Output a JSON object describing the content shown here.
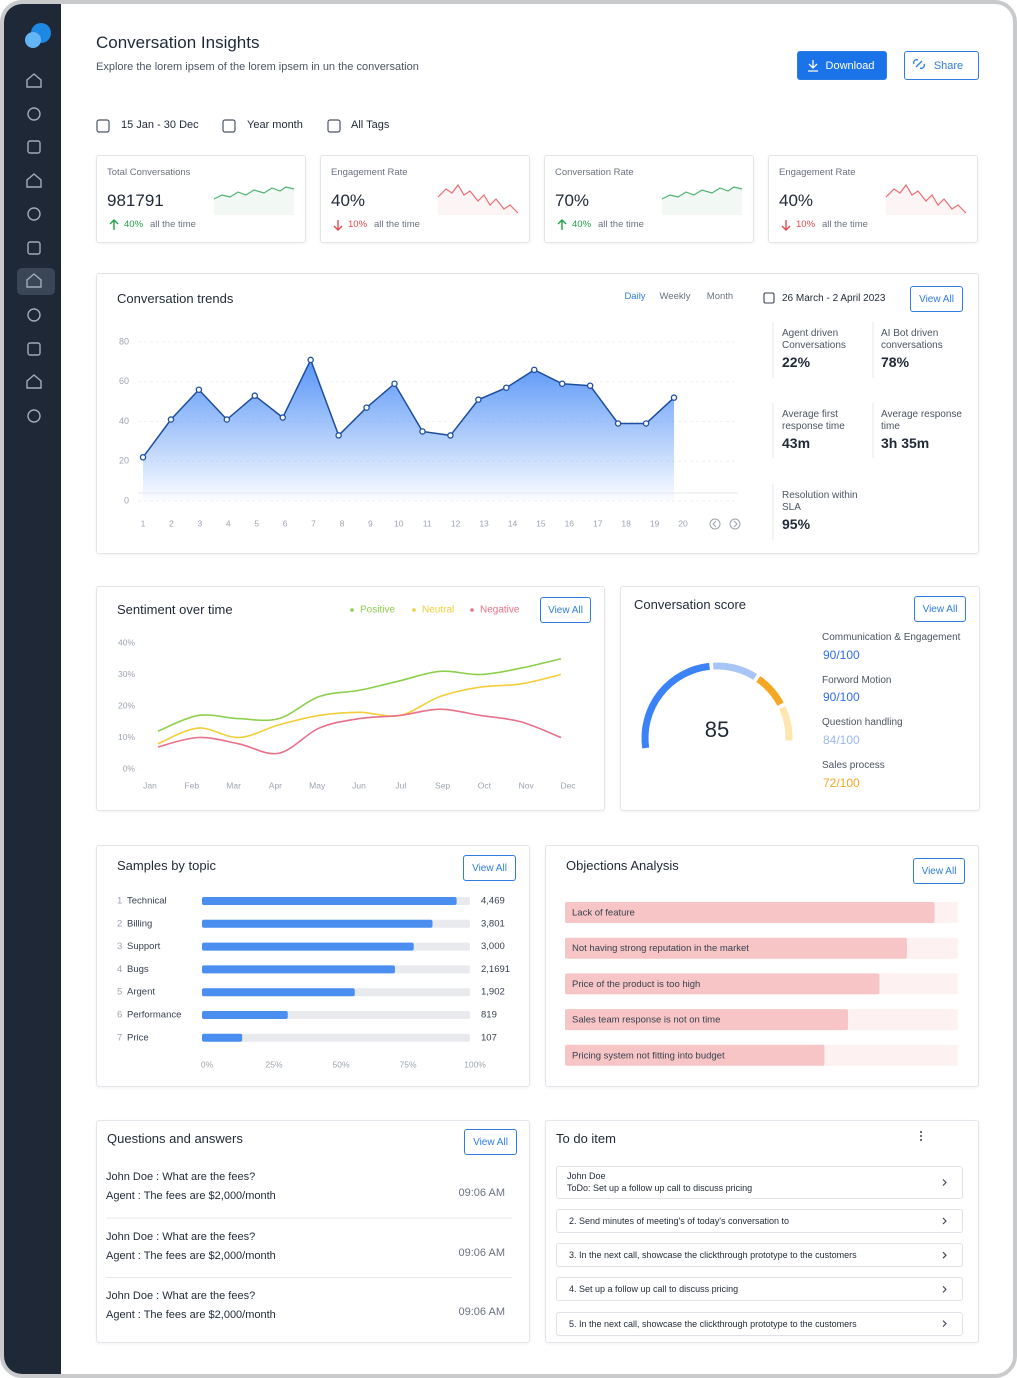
{
  "header": {
    "title": "Conversation Insights",
    "subtitle": "Explore the lorem ipsem of the lorem ipsem in un the conversation",
    "download": "Download",
    "share": "Share"
  },
  "filters": {
    "date": "15 Jan - 30 Dec",
    "period": "Year month",
    "tags": "All Tags"
  },
  "kpis": [
    {
      "label": "Total Conversations",
      "value": "981791",
      "change": "40%",
      "note": "all the time",
      "direction": "up"
    },
    {
      "label": "Engagement Rate",
      "value": "40%",
      "change": "10%",
      "note": "all the time",
      "direction": "down"
    },
    {
      "label": "Conversation Rate",
      "value": "70%",
      "change": "40%",
      "note": "all the time",
      "direction": "up"
    },
    {
      "label": "Engagement Rate",
      "value": "40%",
      "change": "10%",
      "note": "all the time",
      "direction": "down"
    }
  ],
  "trends": {
    "title": "Conversation trends",
    "tabs": [
      "Daily",
      "Weekly",
      "Month"
    ],
    "active_tab": 0,
    "date_range": "26 March - 2 April 2023",
    "view_all": "View All",
    "chart": {
      "type": "area",
      "x": [
        1,
        2,
        3,
        4,
        5,
        6,
        7,
        8,
        9,
        10,
        11,
        12,
        13,
        14,
        15,
        16,
        17,
        18,
        19,
        20
      ],
      "xlim": [
        1,
        20
      ],
      "values": [
        22,
        41,
        56,
        41,
        53,
        42,
        71,
        33,
        47,
        59,
        35,
        33,
        51,
        57,
        66,
        59,
        58,
        39,
        39,
        52
      ],
      "ylim": [
        0,
        80
      ],
      "yticks": [
        0,
        20,
        40,
        60,
        80
      ],
      "color": "#3b82f6",
      "line_color": "#1d4e9e"
    },
    "stats": [
      {
        "label": "Agent driven Conversations",
        "value": "22%"
      },
      {
        "label": "AI Bot driven conversations",
        "value": "78%"
      },
      {
        "label": "Average first response time",
        "value": "43m"
      },
      {
        "label": "Average response time",
        "value": "3h 35m"
      },
      {
        "label": "Resolution within SLA",
        "value": "95%"
      }
    ]
  },
  "sentiment": {
    "title": "Sentiment over time",
    "view_all": "View All",
    "chart": {
      "type": "line",
      "categories": [
        "Jan",
        "Feb",
        "Mar",
        "Apr",
        "May",
        "Jun",
        "Jul",
        "Sep",
        "Oct",
        "Nov",
        "Dec"
      ],
      "ylim": [
        0,
        40
      ],
      "yticks": [
        {
          "value": 0,
          "label": "0%"
        },
        {
          "value": 10,
          "label": "10%"
        },
        {
          "value": 20,
          "label": "20%"
        },
        {
          "value": 30,
          "label": "30%"
        },
        {
          "value": 40,
          "label": "40%"
        }
      ],
      "series": [
        {
          "name": "Positive",
          "color": "#8ccf4d",
          "values": [
            12,
            17,
            16,
            16,
            23,
            25,
            28,
            31,
            30,
            32,
            35
          ]
        },
        {
          "name": "Neutral",
          "color": "#f2cf3a",
          "values": [
            8,
            13,
            10,
            14,
            17,
            18,
            17,
            23,
            26,
            27,
            30
          ]
        },
        {
          "name": "Negative",
          "color": "#e8708a",
          "values": [
            7,
            10,
            8,
            5,
            13,
            16,
            17,
            19,
            17,
            15,
            10
          ]
        }
      ]
    }
  },
  "score": {
    "title": "Conversation score",
    "view_all": "View All",
    "score": 85,
    "items": [
      {
        "label": "Communication & Engagement",
        "value": "90/100",
        "color": "#2f6fe0"
      },
      {
        "label": "Forword Motion",
        "value": "90/100",
        "color": "#2f6fe0"
      },
      {
        "label": "Question handling",
        "value": "84/100",
        "color": "#9bb9ee"
      },
      {
        "label": "Sales process",
        "value": "72/100",
        "color": "#f5a623"
      }
    ]
  },
  "samples": {
    "title": "Samples by topic",
    "view_all": "View All",
    "chart": {
      "type": "bar",
      "orientation": "horizontal",
      "ranks": [
        1,
        2,
        3,
        4,
        5,
        6,
        7
      ],
      "categories": [
        "Technical",
        "Billing",
        "Support",
        "Bugs",
        "Argent",
        "Performance",
        "Price"
      ],
      "values": [
        95,
        86,
        79,
        72,
        57,
        32,
        15
      ],
      "counts": [
        "4,469",
        "3,801",
        "3,000",
        "2,1691",
        "1,902",
        "819",
        "107"
      ],
      "xlim": [
        0,
        100
      ],
      "xticks": [
        {
          "value": 0,
          "label": "0%"
        },
        {
          "value": 25,
          "label": "25%"
        },
        {
          "value": 50,
          "label": "50%"
        },
        {
          "value": 75,
          "label": "75%"
        },
        {
          "value": 100,
          "label": "100%"
        }
      ],
      "color": "#4a8ef0"
    }
  },
  "objections": {
    "title": "Objections Analysis",
    "view_all": "View All",
    "chart": {
      "type": "bar",
      "orientation": "horizontal",
      "categories": [
        "Lack of feature",
        "Not having strong reputation in the market",
        "Price of the product is too high",
        "Sales team response is not on time",
        "Pricing system not fitting into budget"
      ],
      "values": [
        94,
        87,
        80,
        72,
        66
      ],
      "xlim": [
        0,
        100
      ],
      "color": "#f7c5c5"
    }
  },
  "qa": {
    "title": "Questions and answers",
    "view_all": "View All",
    "items": [
      {
        "question": "John Doe : What are the fees?",
        "answer": "Agent : The fees are $2,000/month",
        "time": "09:06 AM"
      },
      {
        "question": "John Doe : What are the fees?",
        "answer": "Agent : The fees are $2,000/month",
        "time": "09:06 AM"
      },
      {
        "question": "John Doe : What are the fees?",
        "answer": "Agent : The fees are $2,000/month",
        "time": "09:06 AM"
      }
    ]
  },
  "todo": {
    "title": "To do item",
    "items": [
      {
        "name": "John Doe",
        "text": "ToDo: Set up a follow up call to discuss pricing"
      },
      {
        "text": "2. Send minutes of meeting's of today's conversation to"
      },
      {
        "text": "3. In the next call, showcase the clickthrough prototype to the customers"
      },
      {
        "text": "4. Set up a follow up call to discuss pricing"
      },
      {
        "text": "5. In the next call, showcase the clickthrough prototype to the customers"
      }
    ]
  }
}
